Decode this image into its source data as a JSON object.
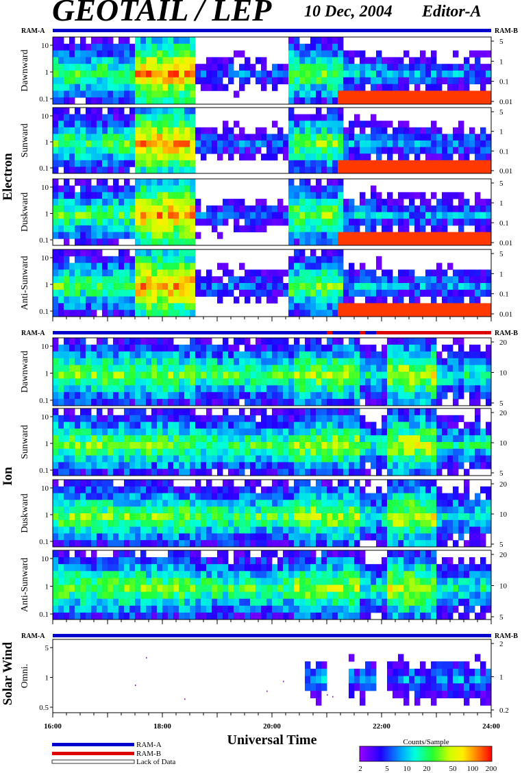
{
  "header": {
    "title": "GEOTAIL / LEP",
    "date": "10 Dec, 2004",
    "edition": "Editor-A"
  },
  "ram": {
    "a": "RAM-A",
    "b": "RAM-B"
  },
  "colors": {
    "ram_a": "#0000cc",
    "ram_b": "#dd0000",
    "lack": "#ffffff"
  },
  "groups": {
    "electron": "Electron",
    "ion": "Ion",
    "solar_wind": "Solar Wind"
  },
  "xaxis": {
    "label": "Universal Time",
    "ticks": [
      "16:00",
      "18:00",
      "20:00",
      "22:00",
      "24:00"
    ],
    "range": [
      16,
      24
    ]
  },
  "legend": {
    "items": [
      "RAM-A",
      "RAM-B",
      "Lack of Data"
    ],
    "colorbar_title": "Counts/Sample",
    "colorbar_ticks": [
      "2",
      "5",
      "10",
      "20",
      "50",
      "100",
      "200"
    ]
  },
  "chart_data": {
    "type": "heatmap",
    "x_unit": "UT hours",
    "panels": [
      {
        "group": "Electron",
        "label": "Dawnward",
        "left_ticks": [
          "10",
          "1",
          "0.1"
        ],
        "right_ticks": [
          "5",
          "1",
          "0.1",
          "0.01"
        ]
      },
      {
        "group": "Electron",
        "label": "Sunward",
        "left_ticks": [
          "10",
          "1",
          "0.1"
        ],
        "right_ticks": [
          "5",
          "1",
          "0.1",
          "0.01"
        ]
      },
      {
        "group": "Electron",
        "label": "Duskward",
        "left_ticks": [
          "10",
          "1",
          "0.1"
        ],
        "right_ticks": [
          "5",
          "1",
          "0.1",
          "0.01"
        ]
      },
      {
        "group": "Electron",
        "label": "Anti-Sunward",
        "left_ticks": [
          "10",
          "1",
          "0.1"
        ],
        "right_ticks": [
          "5",
          "1",
          "0.1",
          "0.01"
        ]
      },
      {
        "group": "Ion",
        "label": "Dawnward",
        "left_ticks": [
          "10",
          "1",
          "0.1"
        ],
        "right_ticks": [
          "20",
          "10",
          "5"
        ]
      },
      {
        "group": "Ion",
        "label": "Sunward",
        "left_ticks": [
          "10",
          "1",
          "0.1"
        ],
        "right_ticks": [
          "20",
          "10",
          "5"
        ]
      },
      {
        "group": "Ion",
        "label": "Duskward",
        "left_ticks": [
          "10",
          "1",
          "0.1"
        ],
        "right_ticks": [
          "20",
          "10",
          "5"
        ]
      },
      {
        "group": "Ion",
        "label": "Anti-Sunward",
        "left_ticks": [
          "10",
          "1",
          "0.1"
        ],
        "right_ticks": [
          "20",
          "10",
          "5"
        ]
      },
      {
        "group": "Solar Wind",
        "label": "Omni.",
        "left_ticks": [
          "5",
          "1",
          "0.5"
        ],
        "right_ticks": [
          "2",
          "1",
          "0.2"
        ]
      }
    ],
    "ram_segments": {
      "electron": [
        [
          16,
          24,
          "a"
        ]
      ],
      "ion": [
        [
          16,
          21.0,
          "a"
        ],
        [
          21.0,
          21.1,
          "b"
        ],
        [
          21.1,
          21.6,
          "a"
        ],
        [
          21.6,
          21.7,
          "b"
        ],
        [
          21.7,
          21.9,
          "a"
        ],
        [
          21.9,
          24,
          "b"
        ]
      ],
      "solar_wind": [
        [
          16,
          24,
          "a"
        ]
      ]
    },
    "colorbar_range": [
      2,
      200
    ]
  }
}
